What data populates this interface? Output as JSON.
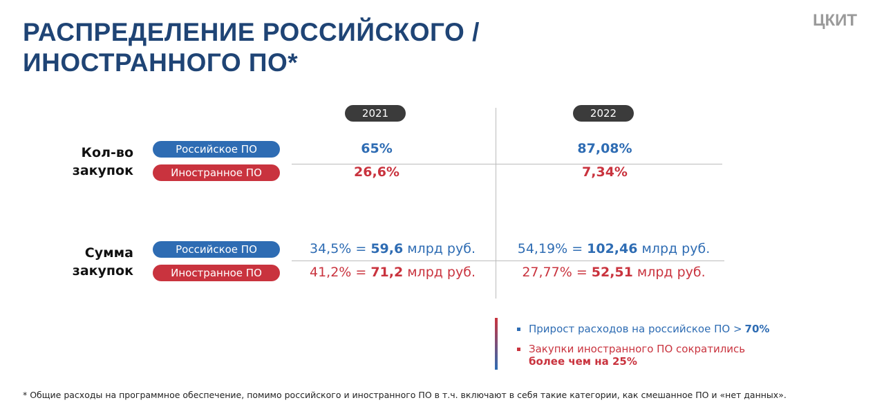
{
  "header": {
    "title_line1": "РАСПРЕДЕЛЕНИЕ РОССИЙСКОГО /",
    "title_line2": "ИНОСТРАННОГО ПО*",
    "logo": "ЦКИТ"
  },
  "columns": [
    "2021",
    "2022"
  ],
  "legend": {
    "russian": "Российское ПО",
    "foreign": "Иностранное ПО"
  },
  "rows": [
    {
      "label_line1": "Кол-во",
      "label_line2": "закупок",
      "russian": [
        {
          "value": "65%"
        },
        {
          "value": "87,08%"
        }
      ],
      "foreign": [
        {
          "value": "26,6%"
        },
        {
          "value": "7,34%"
        }
      ]
    },
    {
      "label_line1": "Сумма",
      "label_line2": "закупок",
      "russian": [
        {
          "share": "34,5% =",
          "amount": "59,6",
          "unit": "млрд руб."
        },
        {
          "share": "54,19% =",
          "amount": "102,46",
          "unit": "млрд руб."
        }
      ],
      "foreign": [
        {
          "share": "41,2% =",
          "amount": "71,2",
          "unit": "млрд руб."
        },
        {
          "share": "27,77% =",
          "amount": "52,51",
          "unit": "млрд руб."
        }
      ]
    }
  ],
  "notes": [
    {
      "text": "Прирост расходов на российское ПО >",
      "bold": "70%"
    },
    {
      "text": "Закупки иностранного ПО сократились",
      "bold": "более чем на 25%"
    }
  ],
  "footnote": "* Общие расходы на программное обеспечение, помимо российского и иностранного ПО в т.ч. включают в себя такие категории, как смешанное ПО и «нет данных»."
}
